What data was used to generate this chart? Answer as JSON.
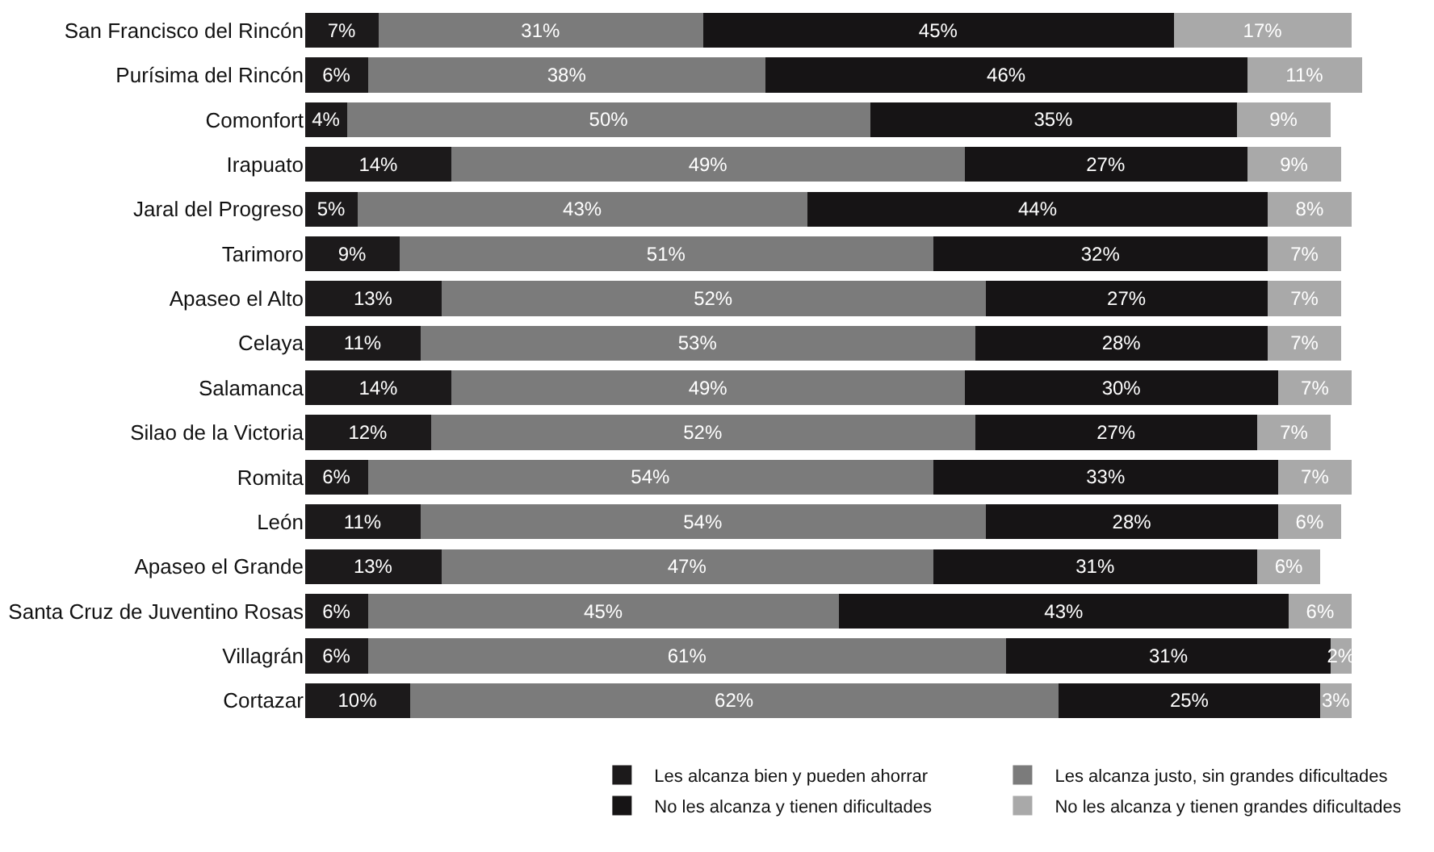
{
  "chart_data": {
    "type": "bar",
    "orientation": "horizontal",
    "stacked": true,
    "legend": "bottom",
    "categories": [
      "San Francisco del Rincón",
      "Purísima del Rincón",
      "Comonfort",
      "Irapuato",
      "Jaral del Progreso",
      "Tarimoro",
      "Apaseo el Alto",
      "Celaya",
      "Salamanca",
      "Silao de la Victoria",
      "Romita",
      "León",
      "Apaseo el Grande",
      "Santa Cruz de Juventino Rosas",
      "Villagrán",
      "Cortazar"
    ],
    "series": [
      {
        "name": "Les alcanza bien y pueden ahorrar",
        "color": "#1c1a1b",
        "values": [
          7,
          6,
          4,
          14,
          5,
          9,
          13,
          11,
          14,
          12,
          6,
          11,
          13,
          6,
          6,
          10
        ],
        "value_labels": [
          "7%",
          "6%",
          "4%",
          "14%",
          "5%",
          "9%",
          "13%",
          "11%",
          "14%",
          "12%",
          "6%",
          "11%",
          "13%",
          "6%",
          "6%",
          "10%"
        ]
      },
      {
        "name": "Les alcanza justo, sin grandes dificultades",
        "color": "#7b7b7b",
        "values": [
          31,
          38,
          50,
          49,
          43,
          51,
          52,
          53,
          49,
          52,
          54,
          54,
          47,
          45,
          61,
          62
        ],
        "value_labels": [
          "31%",
          "38%",
          "50%",
          "49%",
          "43%",
          "51%",
          "52%",
          "53%",
          "49%",
          "52%",
          "54%",
          "54%",
          "47%",
          "45%",
          "61%",
          "62%"
        ]
      },
      {
        "name": "No les alcanza y tienen dificultades",
        "color": "#161415",
        "values": [
          45,
          46,
          35,
          27,
          44,
          32,
          27,
          28,
          30,
          27,
          33,
          28,
          31,
          43,
          31,
          25
        ],
        "value_labels": [
          "45%",
          "46%",
          "35%",
          "27%",
          "44%",
          "32%",
          "27%",
          "28%",
          "30%",
          "27%",
          "33%",
          "28%",
          "31%",
          "43%",
          "31%",
          "25%"
        ]
      },
      {
        "name": "No les alcanza y tienen grandes dificultades",
        "color": "#a9a9a9",
        "values": [
          17,
          11,
          9,
          9,
          8,
          7,
          7,
          7,
          7,
          7,
          7,
          6,
          6,
          6,
          2,
          3
        ],
        "value_labels": [
          "17%",
          "11%",
          "9%",
          "9%",
          "8%",
          "7%",
          "7%",
          "7%",
          "7%",
          "7%",
          "7%",
          "6%",
          "6%",
          "6%",
          "2%",
          "3%"
        ]
      }
    ]
  }
}
